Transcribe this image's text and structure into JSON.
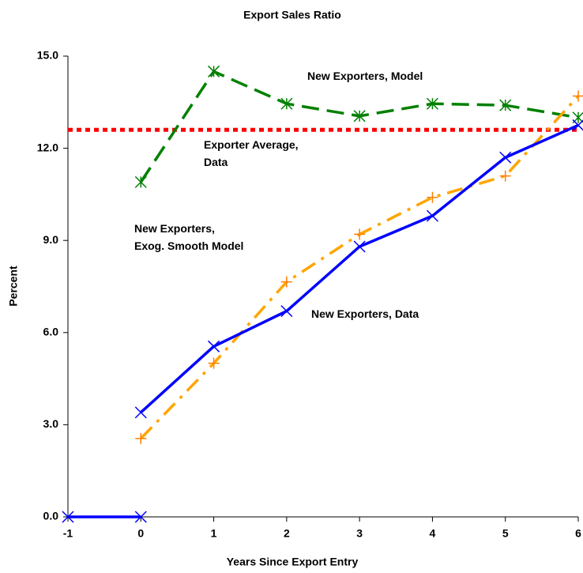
{
  "chart_data": {
    "type": "line",
    "title": "Export Sales Ratio",
    "xlabel": "Years Since Export Entry",
    "ylabel": "Percent",
    "xlim": [
      -1,
      6
    ],
    "xticks": [
      -1,
      0,
      1,
      2,
      3,
      4,
      5,
      6
    ],
    "ylim": [
      0,
      15
    ],
    "yticks": [
      {
        "value": 0,
        "label": "0.0"
      },
      {
        "value": 3,
        "label": "3.0"
      },
      {
        "value": 6,
        "label": "6.0"
      },
      {
        "value": 9,
        "label": "9.0"
      },
      {
        "value": 12,
        "label": "12.0"
      },
      {
        "value": 15,
        "label": "15.0"
      }
    ],
    "series": [
      {
        "name": "Exporter Average,\nData",
        "color": "#ff0000",
        "dash": "dotted",
        "marker": "none",
        "x": [
          -1,
          6
        ],
        "values": [
          12.6,
          12.6
        ]
      },
      {
        "name": "New Exporters, Model",
        "color": "#008000",
        "dash": "dashed",
        "marker": "asterisk",
        "x": [
          0,
          1,
          2,
          3,
          4,
          5,
          6
        ],
        "values": [
          10.9,
          14.5,
          13.45,
          13.05,
          13.45,
          13.4,
          13.0
        ]
      },
      {
        "name": "New Exporters,\nExog. Smooth Model",
        "color": "#ffa500",
        "marker_color": "#ff7f00",
        "dash": "dashdot",
        "marker": "plus",
        "x": [
          0,
          1,
          2,
          3,
          4,
          5,
          6
        ],
        "values": [
          2.55,
          5.0,
          7.65,
          9.2,
          10.4,
          11.1,
          13.7
        ]
      },
      {
        "name": "New Exporters, Data",
        "color": "#0000ff",
        "dash": "solid",
        "marker": "cross",
        "x": [
          -1,
          0,
          null,
          0,
          1,
          2,
          3,
          4,
          5,
          6
        ],
        "values": [
          0,
          0,
          null,
          3.4,
          5.55,
          6.7,
          8.8,
          9.8,
          11.7,
          12.75
        ]
      }
    ]
  }
}
